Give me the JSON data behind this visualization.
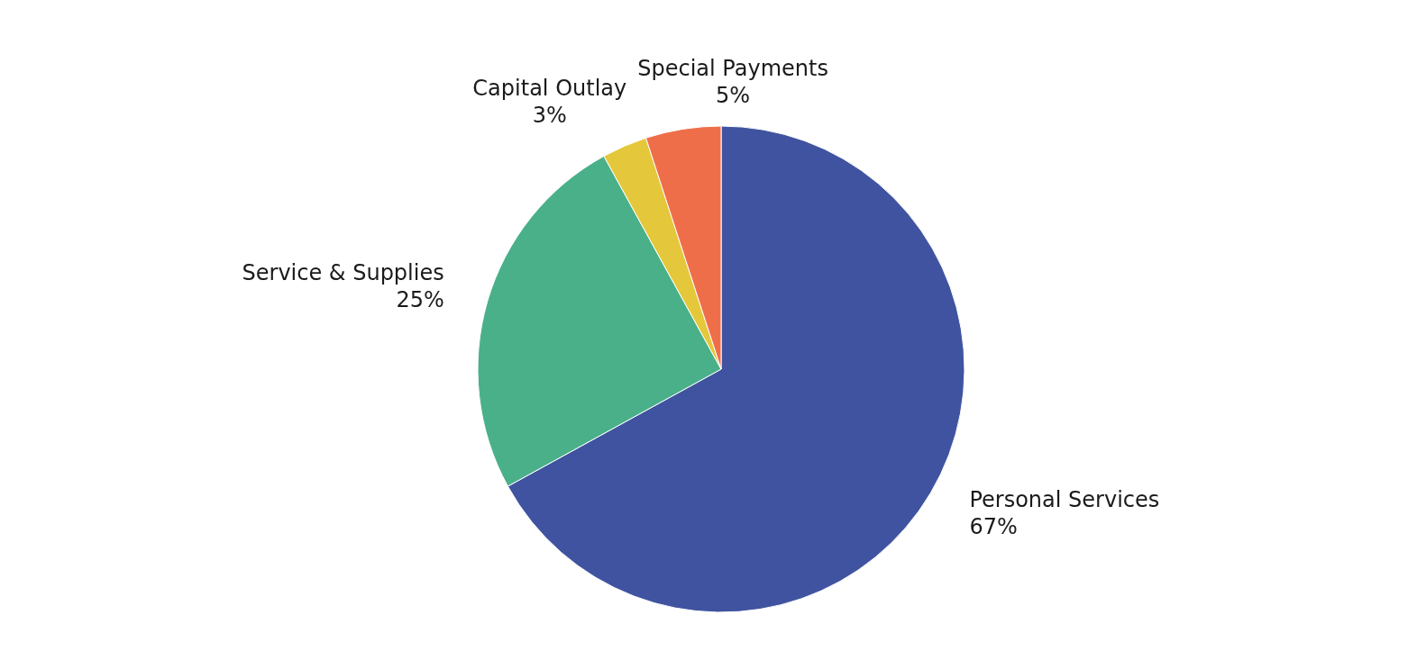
{
  "chart_data": {
    "type": "pie",
    "categories": [
      "Personal Services",
      "Service & Supplies",
      "Capital Outlay",
      "Special Payments"
    ],
    "values": [
      67,
      25,
      3,
      5
    ],
    "colors": [
      "#4053a0",
      "#4ab08a",
      "#e5c73b",
      "#ef6e4a"
    ],
    "value_labels": [
      "67%",
      "25%",
      "3%",
      "5%"
    ]
  }
}
